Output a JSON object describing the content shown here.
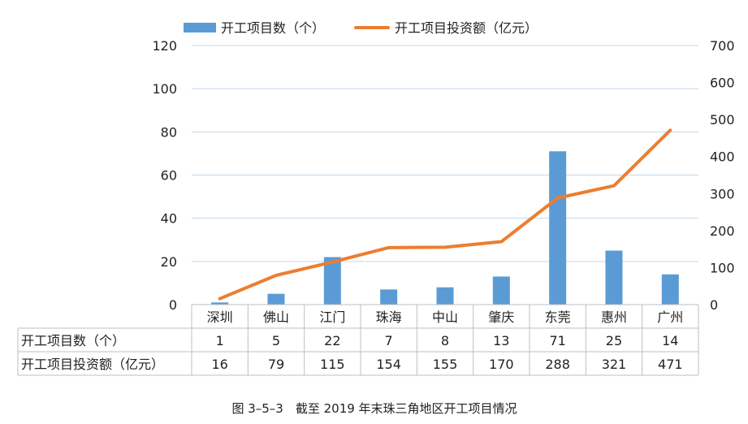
{
  "caption": "图 3–5–3　截至 2019 年末珠三角地区开工项目情况",
  "chart_data": {
    "type": "bar-line-combo",
    "categories": [
      "深圳",
      "佛山",
      "江门",
      "珠海",
      "中山",
      "肇庆",
      "东莞",
      "惠州",
      "广州"
    ],
    "series": [
      {
        "name": "开工项目数（个）",
        "type": "bar",
        "axis": "left",
        "values": [
          1,
          5,
          22,
          7,
          8,
          13,
          71,
          25,
          14
        ],
        "color": "#5b9bd5"
      },
      {
        "name": "开工项目投资额（亿元）",
        "type": "line",
        "axis": "right",
        "values": [
          16,
          79,
          115,
          154,
          155,
          170,
          288,
          321,
          471
        ],
        "color": "#ed7d31"
      }
    ],
    "y_left": {
      "min": 0,
      "max": 120,
      "ticks": [
        0,
        20,
        40,
        60,
        80,
        100,
        120
      ]
    },
    "y_right": {
      "min": 0,
      "max": 700,
      "ticks": [
        0,
        100,
        200,
        300,
        400,
        500,
        600,
        700
      ]
    },
    "grid": true,
    "legend_position": "top-center",
    "table_rows": [
      {
        "label": "开工项目数（个）",
        "values": [
          "1",
          "5",
          "22",
          "7",
          "8",
          "13",
          "71",
          "25",
          "14"
        ]
      },
      {
        "label": "开工项目投资额（亿元）",
        "values": [
          "16",
          "79",
          "115",
          "154",
          "155",
          "170",
          "288",
          "321",
          "471"
        ]
      }
    ]
  }
}
